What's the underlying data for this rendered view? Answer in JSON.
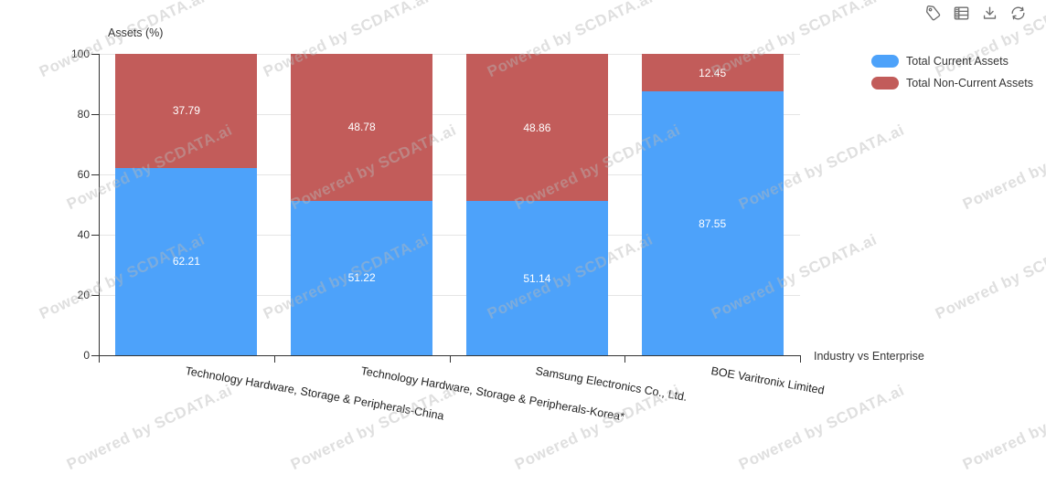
{
  "watermark": {
    "text": "Powered by SCDATA.ai"
  },
  "toolbar": {
    "icons": [
      "tag-icon",
      "table-icon",
      "download-icon",
      "refresh-icon"
    ]
  },
  "chart_data": {
    "type": "bar",
    "stacked": true,
    "ylabel": "Assets (%)",
    "xlabel": "Industry vs Enterprise",
    "categories": [
      "Technology Hardware, Storage & Peripherals-China",
      "Technology Hardware, Storage & Peripherals-Korea*",
      "Samsung Electronics Co., Ltd.",
      "BOE Varitronix Limited"
    ],
    "series": [
      {
        "name": "Total Current Assets",
        "color": "#4DA2FA",
        "values": [
          62.21,
          51.22,
          51.14,
          87.55
        ]
      },
      {
        "name": "Total Non-Current Assets",
        "color": "#C25C5A",
        "values": [
          37.79,
          48.78,
          48.86,
          12.45
        ]
      }
    ],
    "ylim": [
      0,
      100
    ],
    "yticks": [
      0,
      20,
      40,
      60,
      80,
      100
    ],
    "grid": true,
    "legend_position": "right",
    "value_labels": true,
    "value_label_color": "#ffffff"
  }
}
